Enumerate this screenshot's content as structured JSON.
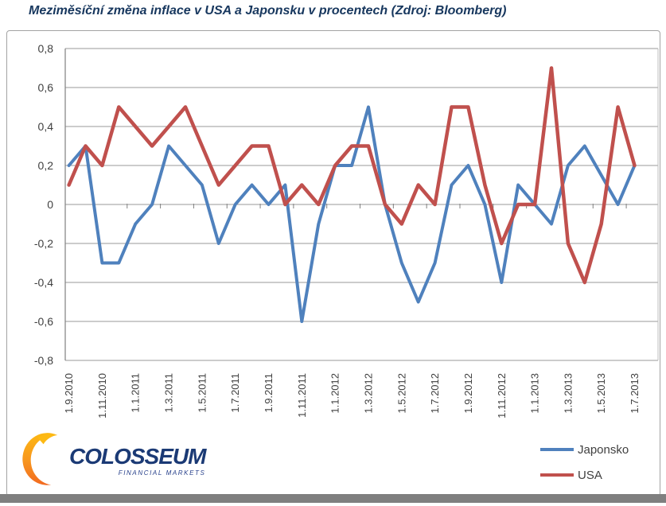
{
  "header": {
    "title": "Meziměsíční změna inflace v USA a Japonsku v procentech (Zdroj: Bloomberg)"
  },
  "chart_data": {
    "type": "line",
    "title": "Meziměsíční změna inflace v USA a Japonsku v procentech (Zdroj: Bloomberg)",
    "xlabel": "",
    "ylabel": "",
    "ylim": [
      -0.8,
      0.8
    ],
    "ytick_step": 0.2,
    "ytick_labels": [
      "0,8",
      "0,6",
      "0,4",
      "0,2",
      "0",
      "-0,2",
      "-0,4",
      "-0,6",
      "-0,8"
    ],
    "grid": "horizontal",
    "legend_position": "bottom-right",
    "categories": [
      "1.9.2010",
      "1.10.2010",
      "1.11.2010",
      "1.12.2010",
      "1.1.2011",
      "1.2.2011",
      "1.3.2011",
      "1.4.2011",
      "1.5.2011",
      "1.6.2011",
      "1.7.2011",
      "1.8.2011",
      "1.9.2011",
      "1.10.2011",
      "1.11.2011",
      "1.12.2011",
      "1.1.2012",
      "1.2.2012",
      "1.3.2012",
      "1.4.2012",
      "1.5.2012",
      "1.6.2012",
      "1.7.2012",
      "1.8.2012",
      "1.9.2012",
      "1.10.2012",
      "1.11.2012",
      "1.12.2012",
      "1.1.2013",
      "1.2.2013",
      "1.3.2013",
      "1.4.2013",
      "1.5.2013",
      "1.6.2013",
      "1.7.2013"
    ],
    "x_tick_labels": [
      "1.9.2010",
      "1.11.2010",
      "1.1.2011",
      "1.3.2011",
      "1.5.2011",
      "1.7.2011",
      "1.9.2011",
      "1.11.2011",
      "1.1.2012",
      "1.3.2012",
      "1.5.2012",
      "1.7.2012",
      "1.9.2012",
      "1.11.2012",
      "1.1.2013",
      "1.3.2013",
      "1.5.2013",
      "1.7.2013"
    ],
    "series": [
      {
        "name": "Japonsko",
        "color": "#4F81BD",
        "values": [
          0.2,
          0.3,
          -0.3,
          -0.3,
          -0.1,
          0.0,
          0.3,
          0.2,
          0.1,
          -0.2,
          0.0,
          0.1,
          0.0,
          0.1,
          -0.6,
          -0.1,
          0.2,
          0.2,
          0.5,
          0.0,
          -0.3,
          -0.5,
          -0.3,
          0.1,
          0.2,
          0.0,
          -0.4,
          0.1,
          0.0,
          -0.1,
          0.2,
          0.3,
          0.15,
          0.0,
          0.2
        ]
      },
      {
        "name": "USA",
        "color": "#C0504D",
        "values": [
          0.1,
          0.3,
          0.2,
          0.5,
          0.4,
          0.3,
          0.4,
          0.5,
          0.3,
          0.1,
          0.2,
          0.3,
          0.3,
          0.0,
          0.1,
          0.0,
          0.2,
          0.3,
          0.3,
          0.0,
          -0.1,
          0.1,
          0.0,
          0.5,
          0.5,
          0.1,
          -0.2,
          0.0,
          0.0,
          0.7,
          -0.2,
          -0.4,
          -0.1,
          0.5,
          0.2
        ]
      }
    ]
  },
  "logo": {
    "text": "COLOSSEUM",
    "subtext": "FINANCIAL MARKETS",
    "accent_color_top": "#FDB913",
    "accent_color_bottom": "#F26A21",
    "text_color": "#1B3A75"
  },
  "colors": {
    "title": "#17375E",
    "gridline": "#9A9A9A",
    "axis": "#808080",
    "plot_right_border": "#BDBDBD",
    "tick_label": "#404040",
    "frame_border": "#A3A3A3",
    "bottom_strip": "#7F7F7F"
  }
}
